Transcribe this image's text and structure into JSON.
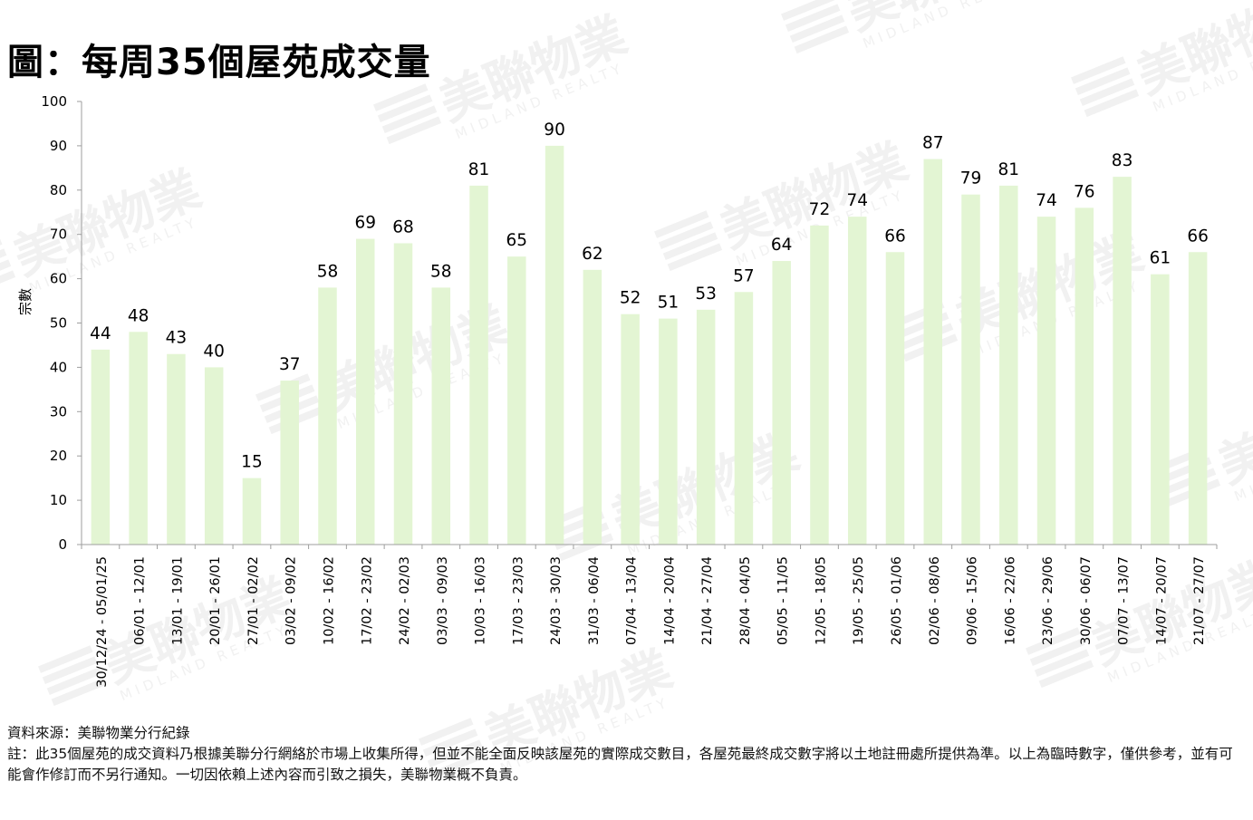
{
  "title": "圖：每周35個屋苑成交量",
  "watermark": {
    "text_cn": "美聯物業",
    "text_en": "MIDLAND REALTY"
  },
  "colors": {
    "bar": "#e3f5d3",
    "axis": "#9e9e9e",
    "text": "#000000",
    "watermark": "#f1f1f1"
  },
  "chart_data": {
    "type": "bar",
    "title": "",
    "xlabel": "",
    "ylabel": "宗數",
    "ylim": [
      0,
      100
    ],
    "yticks": [
      0,
      10,
      20,
      30,
      40,
      50,
      60,
      70,
      80,
      90,
      100
    ],
    "data_labels": true,
    "grid": false,
    "legend": "none",
    "categories": [
      "30/12/24 - 05/01/25",
      "06/01 - 12/01",
      "13/01 - 19/01",
      "20/01 - 26/01",
      "27/01 - 02/02",
      "03/02 - 09/02",
      "10/02 - 16/02",
      "17/02 - 23/02",
      "24/02 - 02/03",
      "03/03 - 09/03",
      "10/03 - 16/03",
      "17/03 - 23/03",
      "24/03 - 30/03",
      "31/03 - 06/04",
      "07/04 - 13/04",
      "14/04 - 20/04",
      "21/04 - 27/04",
      "28/04 - 04/05",
      "05/05 - 11/05",
      "12/05 - 18/05",
      "19/05 - 25/05",
      "26/05 - 01/06",
      "02/06 - 08/06",
      "09/06 - 15/06",
      "16/06 - 22/06",
      "23/06 - 29/06",
      "30/06 - 06/07",
      "07/07 - 13/07",
      "14/07 - 20/07",
      "21/07 - 27/07"
    ],
    "values": [
      44,
      48,
      43,
      40,
      15,
      37,
      58,
      69,
      68,
      58,
      81,
      65,
      90,
      62,
      52,
      51,
      53,
      57,
      64,
      72,
      74,
      66,
      87,
      79,
      81,
      74,
      76,
      83,
      61,
      66
    ]
  },
  "notes": {
    "source": "資料來源：美聯物業分行紀錄",
    "disclaimer": "註：此35個屋苑的成交資料乃根據美聯分行網絡於市場上收集所得，但並不能全面反映該屋苑的實際成交數目，各屋苑最終成交數字將以土地註冊處所提供為準。以上為臨時數字，僅供參考，並有可能會作修訂而不另行通知。一切因依賴上述內容而引致之損失，美聯物業概不負責。"
  }
}
